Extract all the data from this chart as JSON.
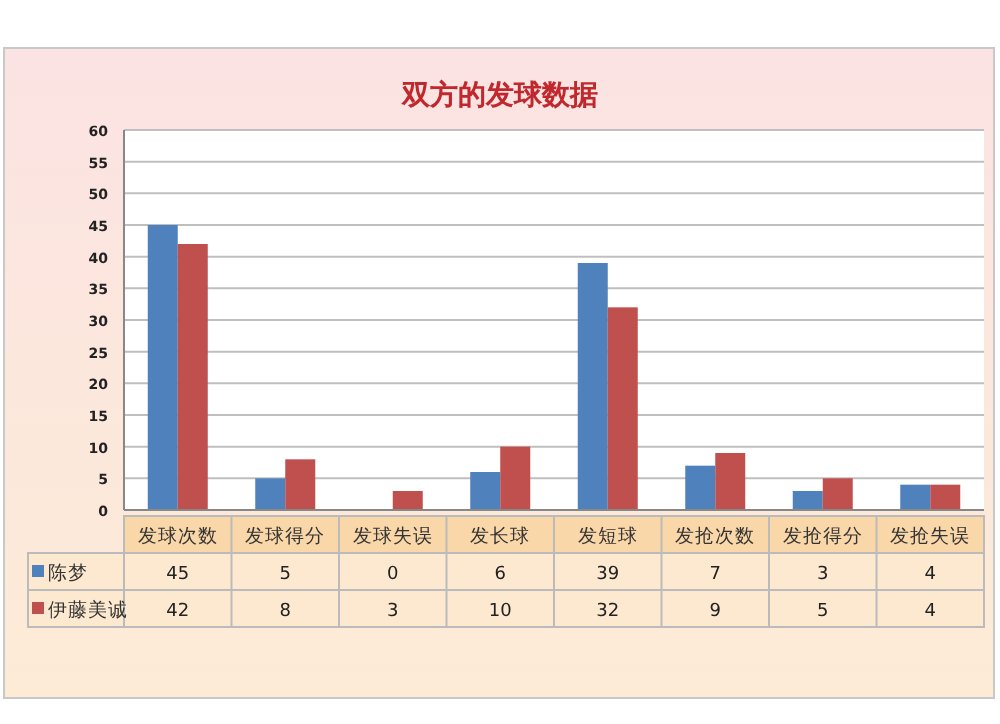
{
  "chart_data": {
    "type": "bar",
    "title": "双方的发球数据",
    "categories": [
      "发球次数",
      "发球得分",
      "发球失误",
      "发长球",
      "发短球",
      "发抢次数",
      "发抢得分",
      "发抢失误"
    ],
    "series": [
      {
        "name": "陈梦",
        "color": "#4f81bd",
        "values": [
          45,
          5,
          0,
          6,
          39,
          7,
          3,
          4
        ]
      },
      {
        "name": "伊藤美诚",
        "color": "#c0504d",
        "values": [
          42,
          8,
          3,
          10,
          32,
          9,
          5,
          4
        ]
      }
    ],
    "ylim": [
      0,
      60
    ],
    "yticks": [
      0,
      5,
      10,
      15,
      20,
      25,
      30,
      35,
      40,
      45,
      50,
      55,
      60
    ],
    "grid": "y",
    "legend": "bottom",
    "data_labels": true
  }
}
